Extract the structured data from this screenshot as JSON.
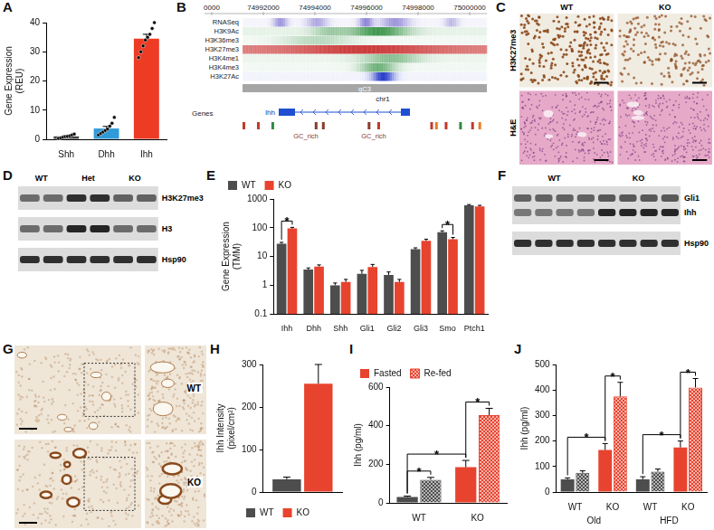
{
  "chart_data": [
    {
      "panel": "A",
      "type": "bar",
      "categories": [
        "Shh",
        "Dhh",
        "Ihh"
      ],
      "values": [
        1.0,
        3.7,
        34.5
      ],
      "errors": [
        0.2,
        0.7,
        1.5
      ],
      "points": [
        [
          0.3,
          0.5,
          0.7,
          0.9,
          1.0,
          1.2,
          1.5,
          1.8
        ],
        [
          1.5,
          2.0,
          2.5,
          3.0,
          3.5,
          4.5,
          5.5,
          7.5
        ],
        [
          28,
          30,
          32,
          34,
          35,
          36,
          38,
          40
        ]
      ],
      "colors": [
        "#404040",
        "#2f9bd8",
        "#ee3b24"
      ],
      "y_label": [
        "Gene Expression",
        "(REU)"
      ],
      "ylim": [
        0,
        40
      ],
      "yticks": [
        0,
        10,
        20,
        30,
        40
      ],
      "grid": false
    },
    {
      "panel": "E",
      "type": "bar",
      "log": "y",
      "categories": [
        "Ihh",
        "Dhh",
        "Shh",
        "Gli1",
        "Gli2",
        "Gli3",
        "Smo",
        "Ptch1"
      ],
      "series": [
        {
          "name": "WT",
          "color": "#4d4d4d",
          "values": [
            28,
            3.5,
            1.0,
            2.5,
            2.3,
            18,
            70,
            600
          ],
          "errors": [
            3,
            0.5,
            0.2,
            0.8,
            0.6,
            2,
            8,
            40
          ]
        },
        {
          "name": "KO",
          "color": "#e8432e",
          "values": [
            95,
            4.5,
            1.3,
            4.3,
            1.3,
            35,
            40,
            550
          ],
          "errors": [
            8,
            0.6,
            0.3,
            1.0,
            0.3,
            5,
            6,
            50
          ]
        }
      ],
      "y_label": [
        "Gene Expression",
        "(TMM)"
      ],
      "ylim": [
        0.1,
        1000
      ],
      "yticks": [
        0.1,
        1,
        10,
        100,
        1000
      ],
      "legend": "top",
      "grid": false,
      "significance": [
        {
          "a": {
            "series": "WT",
            "index": 0
          },
          "b": {
            "series": "KO",
            "index": 0
          },
          "label": "*"
        },
        {
          "a": {
            "series": "WT",
            "index": 6
          },
          "b": {
            "series": "KO",
            "index": 6
          },
          "label": "*"
        }
      ]
    },
    {
      "panel": "H",
      "type": "bar",
      "categories": [
        null
      ],
      "series": [
        {
          "name": "WT",
          "color": "#4d4d4d",
          "values": [
            30
          ],
          "errors": [
            5
          ]
        },
        {
          "name": "KO",
          "color": "#e8432e",
          "values": [
            255
          ],
          "errors": [
            45
          ]
        }
      ],
      "y_label": [
        "Ihh Intensity",
        "(pixel/cm²)"
      ],
      "ylim": [
        0,
        300
      ],
      "yticks": [
        0,
        100,
        200,
        300
      ],
      "legend": "bottom",
      "tick_labels": "y",
      "grid": false
    },
    {
      "panel": "I",
      "type": "bar",
      "categories": [
        "WT",
        "KO"
      ],
      "series": [
        {
          "name": "Fasted",
          "colors": [
            "#4d4d4d",
            "#e8432e"
          ],
          "values": [
            30,
            185
          ],
          "errors": [
            5,
            35
          ]
        },
        {
          "name": "Re-fed",
          "colors": [
            "#4d4d4d",
            "#e8432e"
          ],
          "marker": "checkered",
          "values": [
            120,
            455
          ],
          "errors": [
            12,
            35
          ]
        }
      ],
      "y_label": [
        "Ihh (pg/ml)"
      ],
      "ylim": [
        0,
        600
      ],
      "yticks": [
        0,
        200,
        400,
        600
      ],
      "legend": "top",
      "grid": false,
      "significance": [
        {
          "a": {
            "series": "Fasted",
            "index": 0
          },
          "b": {
            "series": "Re-fed",
            "index": 0
          },
          "label": "*"
        },
        {
          "a": {
            "series": "Fasted",
            "index": 1
          },
          "b": {
            "series": "Re-fed",
            "index": 1
          },
          "label": "*"
        },
        {
          "a": {
            "series": "Fasted",
            "index": 0
          },
          "b": {
            "series": "Fasted",
            "index": 1
          },
          "label": "*"
        }
      ]
    },
    {
      "panel": "J",
      "type": "bar",
      "categories": [
        "WT",
        "KO",
        "WT",
        "KO"
      ],
      "group_labels": [
        "Old",
        "HFD"
      ],
      "series": [
        {
          "name": "Fasted",
          "colors": [
            "#4d4d4d",
            "#e8432e",
            "#4d4d4d",
            "#e8432e"
          ],
          "values": [
            50,
            165,
            50,
            175
          ],
          "errors": [
            5,
            25,
            10,
            25
          ]
        },
        {
          "name": "Re-fed",
          "colors": [
            "#4d4d4d",
            "#e8432e",
            "#4d4d4d",
            "#e8432e"
          ],
          "marker": "checkered",
          "values": [
            75,
            375,
            80,
            410
          ],
          "errors": [
            8,
            55,
            10,
            35
          ]
        }
      ],
      "y_label": [
        "Ihh (pg/ml)"
      ],
      "ylim": [
        0,
        500
      ],
      "yticks": [
        0,
        100,
        200,
        300,
        400,
        500
      ],
      "grid": false,
      "significance": [
        {
          "a": {
            "series": "Fasted",
            "index": 0
          },
          "b": {
            "series": "Fasted",
            "index": 1
          },
          "label": "*"
        },
        {
          "a": {
            "series": "Fasted",
            "index": 1
          },
          "b": {
            "series": "Re-fed",
            "index": 1
          },
          "label": "*"
        },
        {
          "a": {
            "series": "Fasted",
            "index": 2
          },
          "b": {
            "series": "Fasted",
            "index": 3
          },
          "label": "*"
        },
        {
          "a": {
            "series": "Fasted",
            "index": 3
          },
          "b": {
            "series": "Re-fed",
            "index": 3
          },
          "label": "*"
        }
      ]
    }
  ],
  "images": [
    {
      "panel": "B",
      "type": "genome_browser",
      "coordinates": [
        "0000",
        "74992000",
        "74994000",
        "74996000",
        "74998000",
        "75000000"
      ],
      "tracks": [
        "RNASeq",
        "H3K9Ac",
        "H3K36me3",
        "H3K27me3",
        "H3K4me1",
        "H3K4me3",
        "H3K27Ac"
      ],
      "band": "qC3",
      "chromosome": "chr1",
      "gene": "Ihh",
      "gene_track": "Genes",
      "features": [
        "GC_rich",
        "GC_rich"
      ]
    },
    {
      "panel": "C",
      "type": "micrographs",
      "columns": [
        "WT",
        "KO"
      ],
      "rows": [
        "H3K27me3",
        "H&E"
      ]
    },
    {
      "panel": "D",
      "type": "western_blot",
      "lanes": [
        {
          "label": "WT",
          "count": 2
        },
        {
          "label": "Het",
          "count": 2
        },
        {
          "label": "KO",
          "count": 2
        }
      ],
      "strips": [
        [
          "H3K27me3"
        ],
        [
          "H3"
        ],
        [
          "Hsp90"
        ]
      ]
    },
    {
      "panel": "F",
      "type": "western_blot",
      "lanes": [
        {
          "label": "WT",
          "count": 4
        },
        {
          "label": "KO",
          "count": 4
        }
      ],
      "strips": [
        [
          "Gli1",
          "Ihh"
        ],
        [
          "Hsp90"
        ]
      ]
    },
    {
      "panel": "G",
      "type": "micrographs_zoom",
      "rows": [
        "WT",
        "KO"
      ]
    }
  ]
}
